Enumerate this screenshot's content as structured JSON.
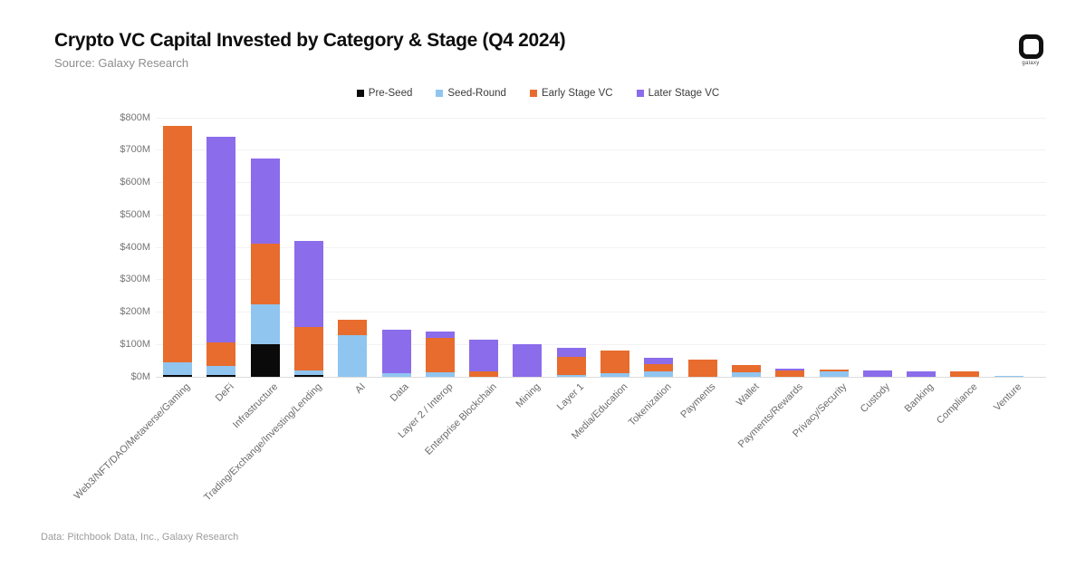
{
  "header": {
    "title": "Crypto VC Capital Invested by Category & Stage (Q4 2024)",
    "source": "Source: Galaxy Research",
    "logo_text": "galaxy"
  },
  "footer": {
    "text": "Data: Pitchbook Data, Inc., Galaxy Research"
  },
  "chart_data": {
    "type": "bar",
    "variant": "stacked",
    "title": "Crypto VC Capital Invested by Category & Stage (Q4 2024)",
    "xlabel": "",
    "ylabel": "",
    "unit": "USD millions",
    "ylim": [
      0,
      800
    ],
    "grid": true,
    "legend_position": "top-center",
    "y_tick_values": [
      0,
      100,
      200,
      300,
      400,
      500,
      600,
      700,
      800
    ],
    "y_tick_labels": [
      "$0M",
      "$100M",
      "$200M",
      "$300M",
      "$400M",
      "$500M",
      "$600M",
      "$700M",
      "$800M"
    ],
    "categories": [
      "Web3/NFT/DAO/Metaverse/Gaming",
      "DeFi",
      "Infrastructure",
      "Trading/Exchange/Investing/Lending",
      "AI",
      "Data",
      "Layer 2 / Interop",
      "Enterprise Blockchain",
      "Mining",
      "Layer 1",
      "Media/Education",
      "Tokenization",
      "Payments",
      "Wallet",
      "Payments/Rewards",
      "Privacy/Security",
      "Custody",
      "Banking",
      "Compliance",
      "Venture"
    ],
    "series": [
      {
        "name": "Pre-Seed",
        "color": "#0a0a0a",
        "values": [
          5,
          5,
          100,
          5,
          0,
          0,
          0,
          0,
          0,
          0,
          0,
          0,
          0,
          0,
          0,
          0,
          0,
          0,
          0,
          0
        ]
      },
      {
        "name": "Seed-Round",
        "color": "#90c5f0",
        "values": [
          40,
          30,
          125,
          15,
          130,
          10,
          15,
          0,
          0,
          5,
          12,
          16,
          0,
          13,
          0,
          16,
          0,
          0,
          0,
          3
        ]
      },
      {
        "name": "Early Stage VC",
        "color": "#e76c2e",
        "values": [
          730,
          70,
          185,
          135,
          45,
          0,
          105,
          17,
          0,
          57,
          70,
          23,
          52,
          24,
          19,
          7,
          0,
          0,
          18,
          0
        ]
      },
      {
        "name": "Later Stage VC",
        "color": "#8b6ceb",
        "values": [
          0,
          635,
          265,
          265,
          0,
          135,
          20,
          98,
          100,
          28,
          0,
          21,
          0,
          0,
          7,
          0,
          20,
          18,
          0,
          0
        ]
      }
    ],
    "totals": [
      775,
      740,
      675,
      420,
      175,
      145,
      140,
      115,
      100,
      90,
      82,
      60,
      52,
      37,
      26,
      23,
      20,
      18,
      18,
      3
    ]
  }
}
